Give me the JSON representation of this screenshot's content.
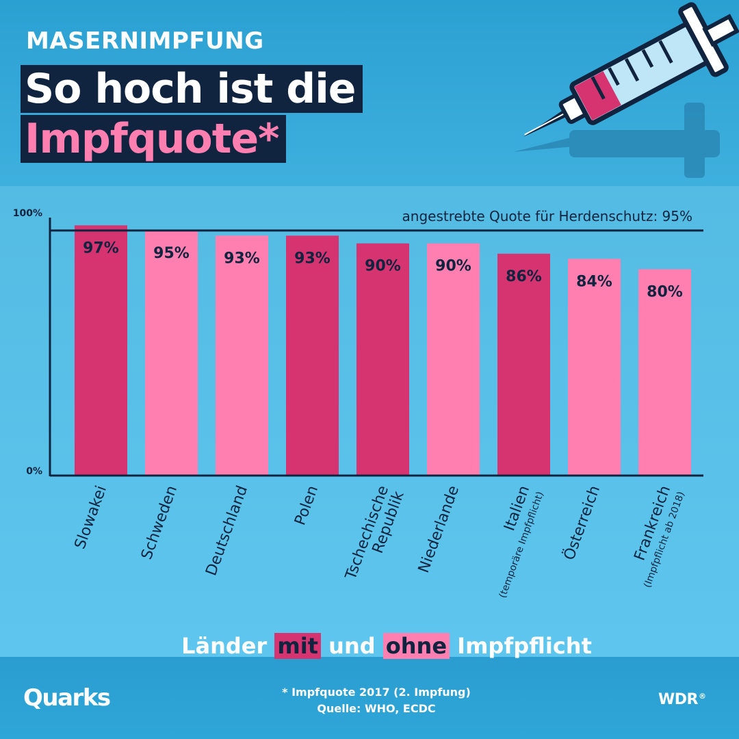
{
  "header": {
    "kicker": "MASERNIMPFUNG",
    "title_line1": "So hoch ist die",
    "title_line2": "Impfquote*"
  },
  "illustration": {
    "icon": "syringe-icon"
  },
  "colors": {
    "with_mandate": "#d63371",
    "without_mandate": "#ff7fb0",
    "navy": "#10243f",
    "background": "#5ec6ee"
  },
  "chart_data": {
    "type": "bar",
    "categories": [
      {
        "line1": "Slowakei",
        "line2": "",
        "note": ""
      },
      {
        "line1": "Schweden",
        "line2": "",
        "note": ""
      },
      {
        "line1": "Deutschland",
        "line2": "",
        "note": ""
      },
      {
        "line1": "Polen",
        "line2": "",
        "note": ""
      },
      {
        "line1": "Tschechische",
        "line2": "Republik",
        "note": ""
      },
      {
        "line1": "Niederlande",
        "line2": "",
        "note": ""
      },
      {
        "line1": "Italien",
        "line2": "",
        "note": "(temporäre Impfpflicht)"
      },
      {
        "line1": "Österreich",
        "line2": "",
        "note": ""
      },
      {
        "line1": "Frankreich",
        "line2": "",
        "note": "(Impfpflicht ab 2018)"
      }
    ],
    "values": [
      97,
      95,
      93,
      93,
      90,
      90,
      86,
      84,
      80
    ],
    "value_labels": [
      "97%",
      "95%",
      "93%",
      "93%",
      "90%",
      "90%",
      "86%",
      "84%",
      "80%"
    ],
    "mandate": [
      true,
      false,
      false,
      true,
      true,
      false,
      true,
      false,
      false
    ],
    "ylim": [
      0,
      100
    ],
    "y_tick_labels": [
      "100%",
      "0%"
    ],
    "reference_line": {
      "value": 95,
      "label": "angestrebte Quote für Herdenschutz: 95%"
    },
    "grid": false
  },
  "legend": {
    "word1": "Länder",
    "word_mit": "mit",
    "word_und": "und",
    "word_ohne": "ohne",
    "word_last": "Impfpflicht"
  },
  "footer": {
    "footnote": "* Impfquote 2017 (2. Impfung)",
    "source": "Quelle: WHO, ECDC",
    "logo_left": "Quarks",
    "logo_right": "WDR",
    "logo_right_mark": "®"
  }
}
